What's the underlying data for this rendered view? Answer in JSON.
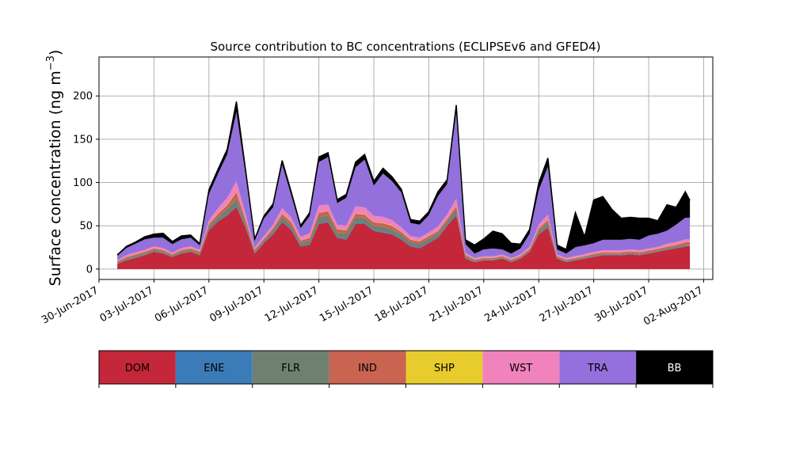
{
  "chart_data": {
    "type": "area",
    "title": "Source contribution to BC concentrations (ECLIPSEv6 and GFED4)",
    "ylabel": "Surface concentration (ng m",
    "ylabel_sup": "−3",
    "ylabel_close": ")",
    "xlabel": "",
    "ylim": [
      -12,
      245
    ],
    "yticks": [
      0,
      50,
      100,
      150,
      200
    ],
    "xlim": [
      "2017-06-30T00:00",
      "2017-08-02T12:00"
    ],
    "xticks": [
      "30-Jun-2017",
      "03-Jul-2017",
      "06-Jul-2017",
      "09-Jul-2017",
      "12-Jul-2017",
      "15-Jul-2017",
      "18-Jul-2017",
      "21-Jul-2017",
      "24-Jul-2017",
      "27-Jul-2017",
      "30-Jul-2017",
      "02-Aug-2017"
    ],
    "xtick_dates": [
      "2017-06-30",
      "2017-07-03",
      "2017-07-06",
      "2017-07-09",
      "2017-07-12",
      "2017-07-15",
      "2017-07-18",
      "2017-07-21",
      "2017-07-24",
      "2017-07-27",
      "2017-07-30",
      "2017-08-02"
    ],
    "grid": true,
    "legend": "colorbar-below",
    "x": [
      "2017-07-01T00:00",
      "2017-07-01T12:00",
      "2017-07-02T00:00",
      "2017-07-02T12:00",
      "2017-07-03T00:00",
      "2017-07-03T12:00",
      "2017-07-04T00:00",
      "2017-07-04T12:00",
      "2017-07-05T00:00",
      "2017-07-05T12:00",
      "2017-07-06T00:00",
      "2017-07-06T12:00",
      "2017-07-07T00:00",
      "2017-07-07T12:00",
      "2017-07-08T00:00",
      "2017-07-08T12:00",
      "2017-07-09T00:00",
      "2017-07-09T12:00",
      "2017-07-10T00:00",
      "2017-07-10T12:00",
      "2017-07-11T00:00",
      "2017-07-11T12:00",
      "2017-07-12T00:00",
      "2017-07-12T12:00",
      "2017-07-13T00:00",
      "2017-07-13T12:00",
      "2017-07-14T00:00",
      "2017-07-14T12:00",
      "2017-07-15T00:00",
      "2017-07-15T12:00",
      "2017-07-16T00:00",
      "2017-07-16T12:00",
      "2017-07-17T00:00",
      "2017-07-17T12:00",
      "2017-07-18T00:00",
      "2017-07-18T12:00",
      "2017-07-19T00:00",
      "2017-07-19T12:00",
      "2017-07-20T00:00",
      "2017-07-20T12:00",
      "2017-07-21T00:00",
      "2017-07-21T12:00",
      "2017-07-22T00:00",
      "2017-07-22T12:00",
      "2017-07-23T00:00",
      "2017-07-23T12:00",
      "2017-07-24T00:00",
      "2017-07-24T12:00",
      "2017-07-25T00:00",
      "2017-07-25T12:00",
      "2017-07-26T00:00",
      "2017-07-26T12:00",
      "2017-07-27T00:00",
      "2017-07-27T12:00",
      "2017-07-28T00:00",
      "2017-07-28T12:00",
      "2017-07-29T00:00",
      "2017-07-29T12:00",
      "2017-07-30T00:00",
      "2017-07-30T12:00",
      "2017-07-31T00:00",
      "2017-07-31T12:00",
      "2017-08-01T00:00",
      "2017-08-01T06:00"
    ],
    "series": [
      {
        "name": "DOM",
        "color": "#c4273a",
        "values": [
          6,
          10,
          13,
          16,
          20,
          18,
          14,
          18,
          20,
          16,
          45,
          55,
          62,
          72,
          48,
          18,
          30,
          40,
          54,
          45,
          26,
          28,
          52,
          54,
          36,
          34,
          52,
          52,
          44,
          42,
          40,
          34,
          26,
          24,
          30,
          36,
          50,
          62,
          12,
          8,
          10,
          10,
          12,
          8,
          12,
          20,
          40,
          48,
          12,
          8,
          10,
          12,
          14,
          16,
          16,
          16,
          17,
          16,
          18,
          20,
          22,
          24,
          26,
          26
        ]
      },
      {
        "name": "ENE",
        "color": "#3b7bb8",
        "values": [
          0.5,
          0.5,
          0.5,
          0.5,
          0.5,
          0.5,
          0.5,
          0.5,
          0.5,
          0.5,
          1,
          1,
          1,
          1,
          1,
          0.5,
          1,
          1,
          1,
          1,
          1,
          1,
          1,
          1,
          1,
          1,
          1,
          1,
          1,
          1,
          1,
          1,
          1,
          1,
          1,
          1,
          1,
          1,
          0.5,
          0.5,
          0.5,
          0.5,
          0.5,
          0.5,
          0.5,
          0.5,
          1,
          1,
          0.5,
          0.5,
          0.5,
          0.5,
          0.5,
          0.5,
          0.5,
          0.5,
          0.5,
          0.5,
          0.5,
          0.5,
          0.5,
          0.5,
          0.5,
          0.5
        ]
      },
      {
        "name": "FLR",
        "color": "#6f8070",
        "values": [
          1,
          1.5,
          1.5,
          1.5,
          1.5,
          1.5,
          1,
          1.5,
          1.5,
          1.5,
          3,
          4,
          6,
          8,
          4,
          2,
          2,
          3,
          5,
          4,
          3,
          4,
          7,
          7,
          5,
          6,
          7,
          6,
          5,
          6,
          5,
          5,
          4,
          4,
          4,
          4,
          4,
          6,
          2,
          1,
          1,
          1,
          1,
          1,
          1,
          1,
          3,
          4,
          1,
          1,
          1,
          1,
          1,
          1,
          1,
          1,
          1,
          1,
          1,
          1,
          1.5,
          1.5,
          1.5,
          1.5
        ]
      },
      {
        "name": "IND",
        "color": "#c86450",
        "values": [
          1.5,
          2,
          2,
          2,
          2,
          2,
          1.5,
          2,
          2,
          2,
          3,
          4,
          5,
          8,
          4,
          2,
          2,
          3,
          4,
          4,
          3,
          3,
          5,
          5,
          4,
          4,
          4,
          4,
          4,
          4,
          4,
          3,
          3,
          3,
          3,
          3,
          3,
          4,
          2,
          1.5,
          1.5,
          1.5,
          1.5,
          1.5,
          1.5,
          2,
          3,
          4,
          1.5,
          1.5,
          1.5,
          1.5,
          2,
          2,
          2,
          2,
          2,
          2,
          2,
          2,
          2,
          2,
          3,
          3
        ]
      },
      {
        "name": "SHP",
        "color": "#e8cc2e",
        "values": [
          0.3,
          0.3,
          0.3,
          0.3,
          0.3,
          0.3,
          0.3,
          0.3,
          0.3,
          0.3,
          0.5,
          0.5,
          0.5,
          0.5,
          0.5,
          0.3,
          0.3,
          0.3,
          0.5,
          0.5,
          0.3,
          0.3,
          0.5,
          0.5,
          0.3,
          0.3,
          0.5,
          0.5,
          0.5,
          0.5,
          0.5,
          0.3,
          0.3,
          0.3,
          0.3,
          0.3,
          0.3,
          0.5,
          0.3,
          0.3,
          0.3,
          0.3,
          0.3,
          0.3,
          0.3,
          0.3,
          0.3,
          0.3,
          0.3,
          0.3,
          0.3,
          0.3,
          0.3,
          0.3,
          0.3,
          0.3,
          0.3,
          0.3,
          0.3,
          0.3,
          0.3,
          0.3,
          0.3,
          0.3
        ]
      },
      {
        "name": "WST",
        "color": "#f082bc",
        "values": [
          1,
          2,
          2,
          2,
          2,
          2,
          1.5,
          2,
          2,
          2,
          4,
          6,
          8,
          12,
          6,
          2,
          3,
          4,
          6,
          5,
          4,
          5,
          8,
          7,
          5,
          5,
          8,
          8,
          7,
          7,
          6,
          5,
          4,
          4,
          4,
          5,
          5,
          8,
          2,
          1.5,
          1.5,
          1.5,
          1.5,
          1.5,
          1.5,
          2,
          4,
          6,
          1.5,
          1.5,
          2,
          2,
          2,
          2,
          2,
          2,
          2,
          2,
          2,
          2,
          3,
          3,
          3,
          3
        ]
      },
      {
        "name": "TRA",
        "color": "#9370db",
        "values": [
          5,
          8,
          10,
          12,
          10,
          12,
          10,
          10,
          10,
          5,
          30,
          40,
          50,
          80,
          45,
          8,
          20,
          20,
          50,
          25,
          10,
          20,
          50,
          55,
          25,
          32,
          45,
          55,
          35,
          50,
          45,
          40,
          15,
          15,
          20,
          35,
          35,
          100,
          10,
          5,
          8,
          9,
          6,
          5,
          7,
          15,
          40,
          55,
          6,
          5,
          10,
          10,
          10,
          12,
          12,
          12,
          12,
          12,
          15,
          15,
          15,
          20,
          25,
          25
        ]
      },
      {
        "name": "BB",
        "color": "#000000",
        "values": [
          1,
          2,
          2,
          3,
          4,
          5,
          3,
          4,
          3,
          2,
          5,
          5,
          6,
          12,
          6,
          2,
          3,
          4,
          5,
          4,
          3,
          4,
          6,
          5,
          4,
          4,
          6,
          6,
          5,
          6,
          5,
          4,
          4,
          4,
          4,
          5,
          5,
          8,
          5,
          10,
          12,
          20,
          18,
          12,
          5,
          5,
          8,
          10,
          5,
          5,
          40,
          10,
          50,
          50,
          35,
          25,
          25,
          25,
          20,
          15,
          30,
          20,
          30,
          20
        ]
      }
    ]
  }
}
